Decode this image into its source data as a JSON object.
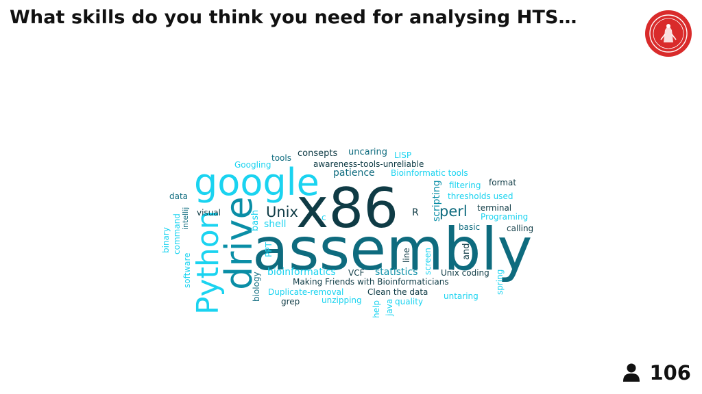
{
  "slide": {
    "title": "What skills do you think you need for analysing HTS…",
    "respondent_count": "106"
  },
  "logo": {
    "name": "university-seal"
  },
  "colors": {
    "cyan": "#1ad3f0",
    "teal": "#0e6b7e",
    "mid": "#0a8ea6",
    "dark": "#0f3b45"
  },
  "icons": {
    "respondents": "user-icon"
  },
  "cloud": {
    "words": [
      "assembly",
      "x86",
      "google",
      "drive",
      "Python",
      "Unix",
      "perl",
      "patience",
      "bioinformatics",
      "statistics",
      "consepts",
      "uncaring",
      "LISP",
      "tools",
      "awareness-tools-unreliable",
      "Googling",
      "Bioinformatic tools",
      "format",
      "filtering",
      "thresholds used",
      "scripting",
      "terminal",
      "Programing",
      "calling",
      "basic",
      "R",
      "data",
      "intellij",
      "command",
      "binary",
      "visual",
      "bash",
      "shell",
      "c",
      "PPT",
      "line",
      "screen",
      "and",
      "software",
      "biology",
      "VCF",
      "Unix coding",
      "spring",
      "Making Friends with Bioinformaticians",
      "Duplicate-removal",
      "Clean the data",
      "untaring",
      "grep",
      "unzipping",
      "quality",
      "help",
      "java"
    ]
  }
}
